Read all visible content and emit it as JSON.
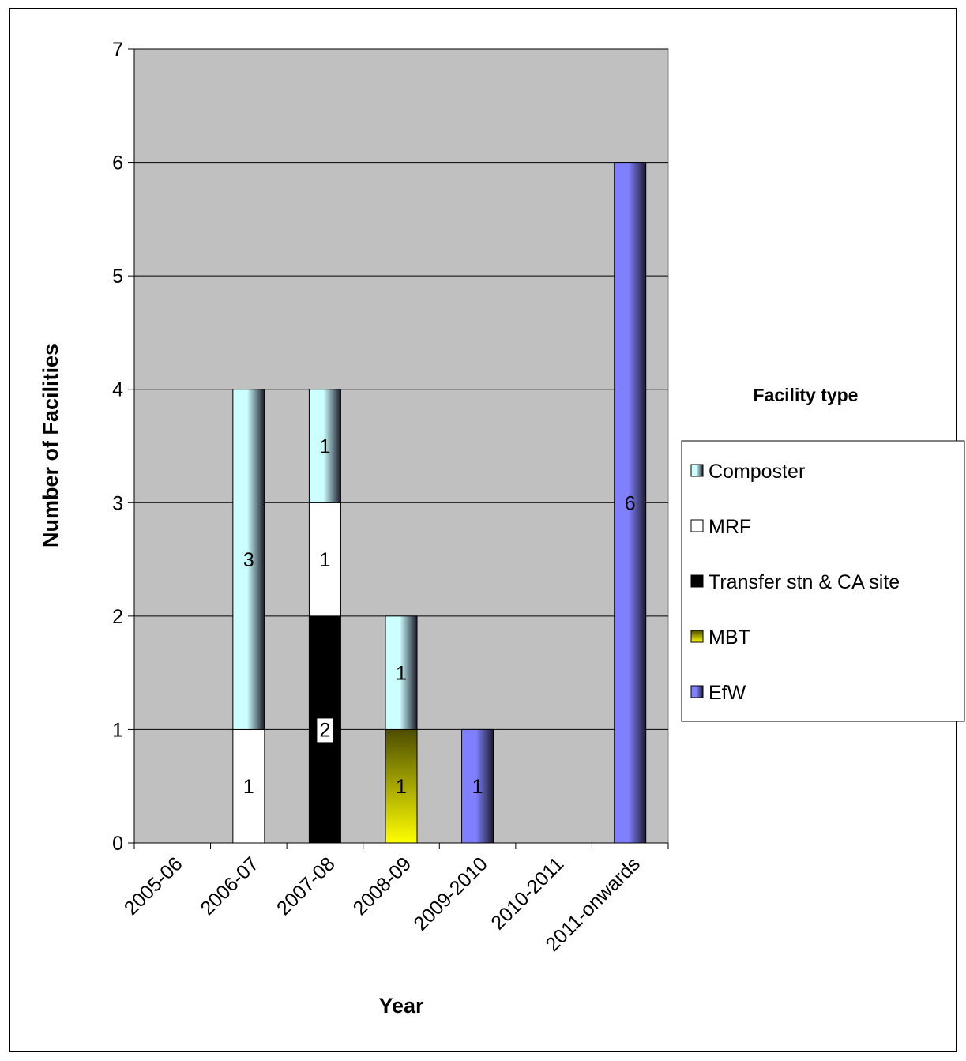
{
  "chart_data": {
    "type": "bar",
    "stacked": true,
    "xlabel": "Year",
    "ylabel": "Number of Facilities",
    "ylim": [
      0,
      7
    ],
    "yticks": [
      0,
      1,
      2,
      3,
      4,
      5,
      6,
      7
    ],
    "grid": true,
    "legend_title": "Facility type",
    "legend_position": "right",
    "categories": [
      "2005-06",
      "2006-07",
      "2007-08",
      "2008-09",
      "2009-2010",
      "2010-2011",
      "2011-onwards"
    ],
    "series": [
      {
        "name": "EfW",
        "values": [
          0,
          0,
          0,
          0,
          1,
          0,
          6
        ],
        "color": "#8080ff",
        "gradient": true
      },
      {
        "name": "MBT",
        "values": [
          0,
          0,
          0,
          1,
          0,
          0,
          0
        ],
        "color": "#ffff00",
        "gradient": true
      },
      {
        "name": "Transfer stn & CA site",
        "values": [
          0,
          0,
          2,
          0,
          0,
          0,
          0
        ],
        "color": "#000000",
        "gradient": false
      },
      {
        "name": "MRF",
        "values": [
          0,
          1,
          1,
          0,
          0,
          0,
          0
        ],
        "color": "#ffffff",
        "gradient": false
      },
      {
        "name": "Composter",
        "values": [
          0,
          3,
          1,
          1,
          0,
          0,
          0
        ],
        "color": "#ccffff",
        "gradient": true
      }
    ],
    "legend_order": [
      "Composter",
      "MRF",
      "Transfer stn & CA site",
      "MBT",
      "EfW"
    ],
    "plot_background": "#c0c0c0"
  }
}
